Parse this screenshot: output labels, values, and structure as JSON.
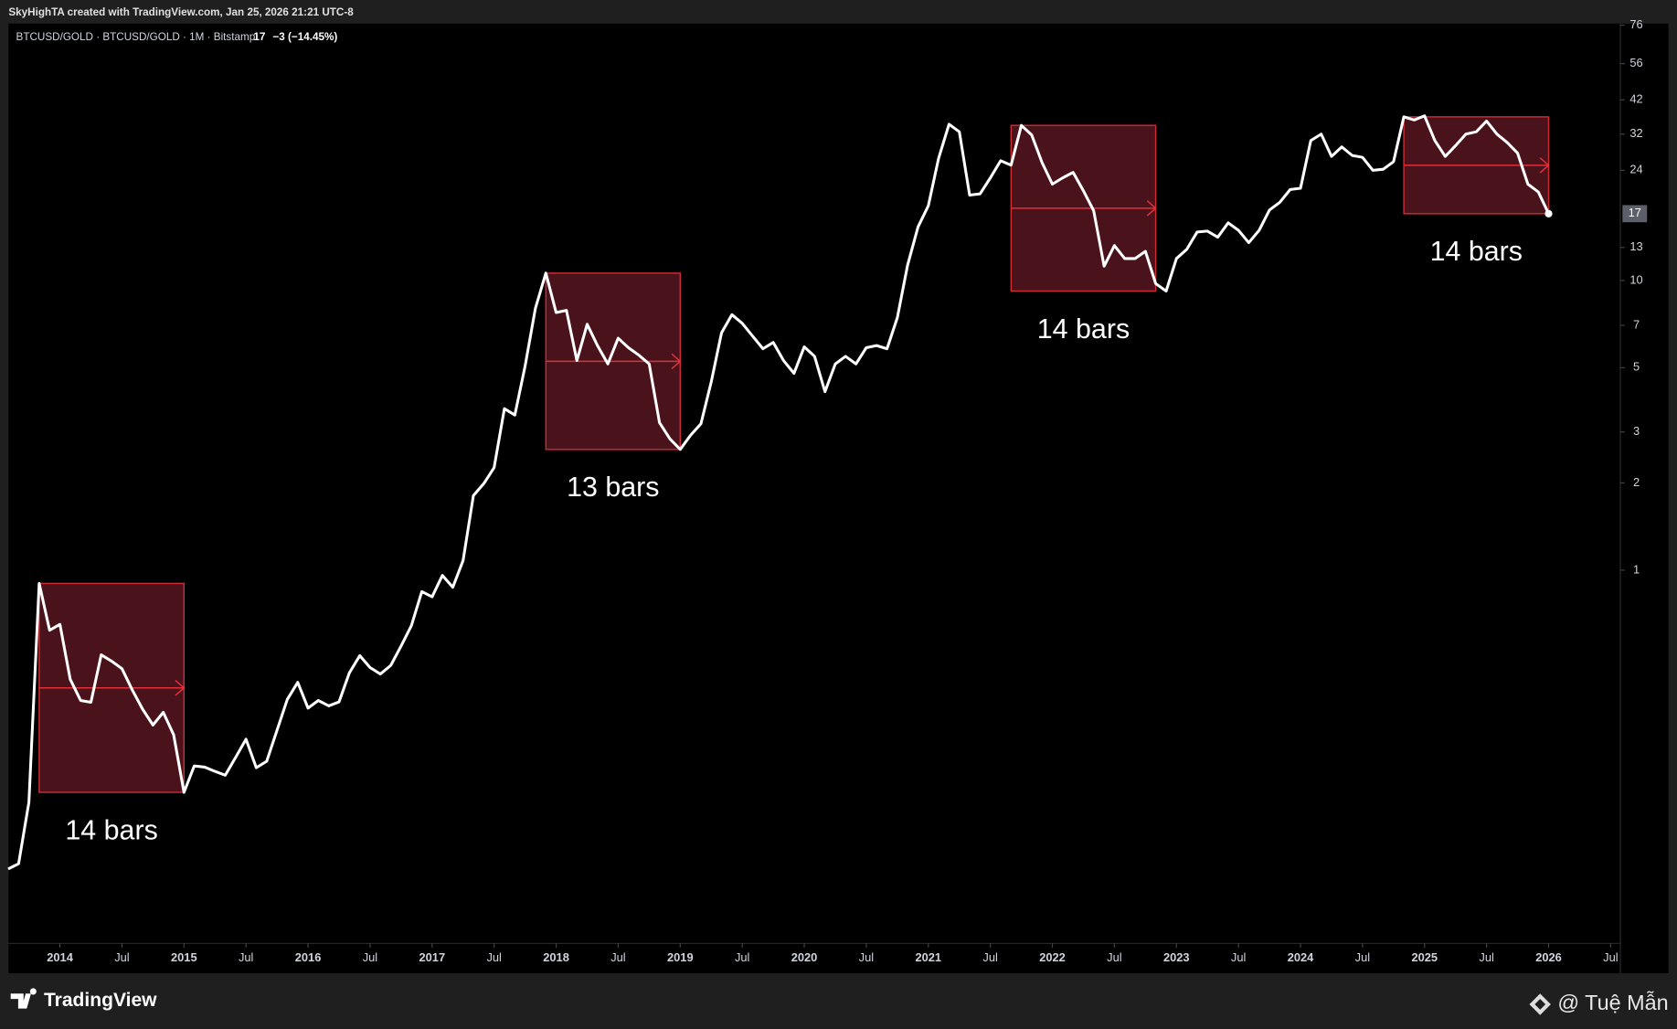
{
  "header": {
    "credit": "SkyHighTA created with TradingView.com, Jan 25, 2026 21:21 UTC-8",
    "symbol": "BTCUSD/GOLD · BTCUSD/GOLD · 1M · Bitstamp",
    "change": "−3 (−14.45%)"
  },
  "footer": {
    "brand": "TradingView",
    "watermark": "@ Tuệ Mẫn"
  },
  "chart_data": {
    "type": "line",
    "log_scale": true,
    "x": [
      2013.583,
      2013.667,
      2013.75,
      2013.833,
      2013.917,
      2014,
      2014.083,
      2014.167,
      2014.25,
      2014.333,
      2014.417,
      2014.5,
      2014.583,
      2014.667,
      2014.75,
      2014.833,
      2014.917,
      2015,
      2015.083,
      2015.167,
      2015.25,
      2015.333,
      2015.417,
      2015.5,
      2015.583,
      2015.667,
      2015.75,
      2015.833,
      2015.917,
      2016,
      2016.083,
      2016.167,
      2016.25,
      2016.333,
      2016.417,
      2016.5,
      2016.583,
      2016.667,
      2016.75,
      2016.833,
      2016.917,
      2017,
      2017.083,
      2017.167,
      2017.25,
      2017.333,
      2017.417,
      2017.5,
      2017.583,
      2017.667,
      2017.75,
      2017.833,
      2017.917,
      2018,
      2018.083,
      2018.167,
      2018.25,
      2018.333,
      2018.417,
      2018.5,
      2018.583,
      2018.667,
      2018.75,
      2018.833,
      2018.917,
      2019,
      2019.083,
      2019.167,
      2019.25,
      2019.333,
      2019.417,
      2019.5,
      2019.583,
      2019.667,
      2019.75,
      2019.833,
      2019.917,
      2020,
      2020.083,
      2020.167,
      2020.25,
      2020.333,
      2020.417,
      2020.5,
      2020.583,
      2020.667,
      2020.75,
      2020.833,
      2020.917,
      2021,
      2021.083,
      2021.167,
      2021.25,
      2021.333,
      2021.417,
      2021.5,
      2021.583,
      2021.667,
      2021.75,
      2021.833,
      2021.917,
      2022,
      2022.083,
      2022.167,
      2022.25,
      2022.333,
      2022.417,
      2022.5,
      2022.583,
      2022.667,
      2022.75,
      2022.833,
      2022.917,
      2023,
      2023.083,
      2023.167,
      2023.25,
      2023.333,
      2023.417,
      2023.5,
      2023.583,
      2023.667,
      2023.75,
      2023.833,
      2023.917,
      2024,
      2024.083,
      2024.167,
      2024.25,
      2024.333,
      2024.417,
      2024.5,
      2024.583,
      2024.667,
      2024.75,
      2024.833,
      2024.917,
      2025,
      2025.083,
      2025.167,
      2025.25,
      2025.333,
      2025.417,
      2025.5,
      2025.583,
      2025.667,
      2025.75,
      2025.833,
      2025.917,
      2026
    ],
    "series": [
      {
        "name": "BTCUSD/GOLD",
        "color": "#ffffff",
        "values": [
          0.093,
          0.097,
          0.158,
          0.9,
          0.62,
          0.65,
          0.42,
          0.355,
          0.35,
          0.51,
          0.485,
          0.457,
          0.386,
          0.331,
          0.292,
          0.323,
          0.27,
          0.171,
          0.211,
          0.209,
          0.202,
          0.196,
          0.226,
          0.261,
          0.208,
          0.219,
          0.28,
          0.358,
          0.41,
          0.334,
          0.355,
          0.34,
          0.351,
          0.442,
          0.507,
          0.461,
          0.438,
          0.469,
          0.547,
          0.643,
          0.843,
          0.809,
          0.959,
          0.873,
          1.08,
          1.81,
          1.99,
          2.26,
          3.61,
          3.43,
          5.07,
          8.02,
          10.6,
          7.75,
          7.88,
          5.29,
          7.06,
          5.96,
          5.15,
          6.32,
          5.86,
          5.52,
          5.15,
          3.23,
          2.84,
          2.61,
          2.92,
          3.2,
          4.46,
          6.59,
          7.62,
          7.11,
          6.43,
          5.81,
          6.11,
          5.29,
          4.78,
          5.9,
          5.47,
          4.13,
          5.15,
          5.47,
          5.15,
          5.86,
          5.96,
          5.81,
          7.43,
          11.3,
          15.3,
          18.1,
          26.4,
          34.6,
          32.6,
          19.7,
          19.9,
          22.6,
          25.9,
          25.0,
          34.3,
          31.8,
          25.5,
          21.5,
          22.6,
          23.6,
          20.4,
          17.4,
          11.2,
          13.2,
          11.9,
          11.9,
          12.6,
          9.75,
          9.19,
          11.9,
          12.8,
          14.7,
          14.8,
          14.1,
          15.8,
          14.9,
          13.5,
          14.9,
          17.5,
          18.6,
          20.6,
          20.8,
          30.4,
          32.0,
          26.8,
          28.9,
          27.0,
          26.6,
          24.0,
          24.2,
          25.7,
          36.7,
          35.8,
          37.0,
          30.4,
          26.8,
          29.2,
          32.0,
          32.6,
          35.5,
          32.0,
          29.9,
          27.5,
          21.5,
          20.2,
          17
        ]
      }
    ],
    "annotations": [
      {
        "label": "14 bars",
        "start": 2013.833,
        "end": 2015,
        "top": 0.9,
        "bottom": 0.171
      },
      {
        "label": "13 bars",
        "start": 2017.917,
        "end": 2019,
        "top": 10.6,
        "bottom": 2.61
      },
      {
        "label": "14 bars",
        "start": 2021.667,
        "end": 2022.833,
        "top": 34.3,
        "bottom": 9.19
      },
      {
        "label": "14 bars",
        "start": 2024.833,
        "end": 2026,
        "top": 36.7,
        "bottom": 17
      }
    ],
    "annotation_color": "#e0303a",
    "annotation_fill": "#4a131b",
    "xlim": [
      2013.586,
      2026.578
    ],
    "xticks": [
      2014,
      {
        "value": 2014.5,
        "label": "Jul"
      },
      2015,
      {
        "value": 2015.5,
        "label": "Jul"
      },
      2016,
      {
        "value": 2016.5,
        "label": "Jul"
      },
      2017,
      {
        "value": 2017.5,
        "label": "Jul"
      },
      2018,
      {
        "value": 2018.5,
        "label": "Jul"
      },
      2019,
      {
        "value": 2019.5,
        "label": "Jul"
      },
      2020,
      {
        "value": 2020.5,
        "label": "Jul"
      },
      2021,
      {
        "value": 2021.5,
        "label": "Jul"
      },
      2022,
      {
        "value": 2022.5,
        "label": "Jul"
      },
      2023,
      {
        "value": 2023.5,
        "label": "Jul"
      },
      2024,
      {
        "value": 2024.5,
        "label": "Jul"
      },
      2025,
      {
        "value": 2025.5,
        "label": "Jul"
      },
      2026,
      {
        "value": 2026.5,
        "label": "Jul"
      }
    ],
    "ylim": [
      0.0515,
      77
    ],
    "yticks": [
      1,
      2,
      3,
      5,
      7,
      10,
      13,
      24,
      32,
      42,
      56,
      76
    ]
  }
}
